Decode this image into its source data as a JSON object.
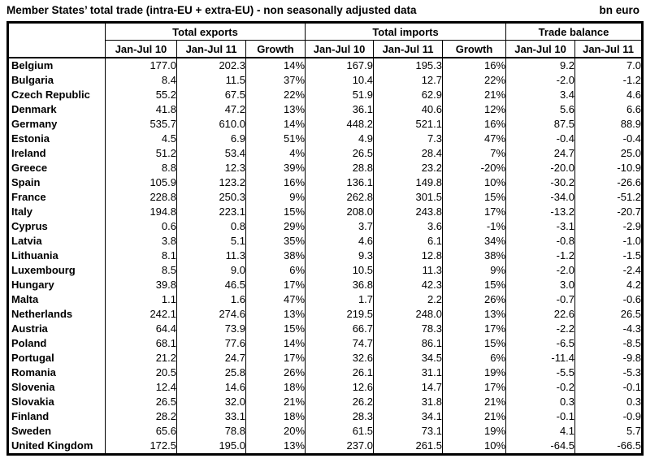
{
  "title": "Member States’ total trade (intra-EU + extra-EU) - non seasonally adjusted data",
  "unit_label": "bn euro",
  "table": {
    "column_groups": [
      {
        "label": "Total exports",
        "span": 3
      },
      {
        "label": "Total imports",
        "span": 3
      },
      {
        "label": "Trade balance",
        "span": 2
      }
    ],
    "sub_headers": [
      "Jan-Jul 10",
      "Jan-Jul 11",
      "Growth",
      "Jan-Jul 10",
      "Jan-Jul 11",
      "Growth",
      "Jan-Jul 10",
      "Jan-Jul 11"
    ],
    "rows": [
      {
        "country": "Belgium",
        "values": [
          "177.0",
          "202.3",
          "14%",
          "167.9",
          "195.3",
          "16%",
          "9.2",
          "7.0"
        ]
      },
      {
        "country": "Bulgaria",
        "values": [
          "8.4",
          "11.5",
          "37%",
          "10.4",
          "12.7",
          "22%",
          "-2.0",
          "-1.2"
        ]
      },
      {
        "country": "Czech Republic",
        "values": [
          "55.2",
          "67.5",
          "22%",
          "51.9",
          "62.9",
          "21%",
          "3.4",
          "4.6"
        ]
      },
      {
        "country": "Denmark",
        "values": [
          "41.8",
          "47.2",
          "13%",
          "36.1",
          "40.6",
          "12%",
          "5.6",
          "6.6"
        ]
      },
      {
        "country": "Germany",
        "values": [
          "535.7",
          "610.0",
          "14%",
          "448.2",
          "521.1",
          "16%",
          "87.5",
          "88.9"
        ]
      },
      {
        "country": "Estonia",
        "values": [
          "4.5",
          "6.9",
          "51%",
          "4.9",
          "7.3",
          "47%",
          "-0.4",
          "-0.4"
        ]
      },
      {
        "country": "Ireland",
        "values": [
          "51.2",
          "53.4",
          "4%",
          "26.5",
          "28.4",
          "7%",
          "24.7",
          "25.0"
        ]
      },
      {
        "country": "Greece",
        "values": [
          "8.8",
          "12.3",
          "39%",
          "28.8",
          "23.2",
          "-20%",
          "-20.0",
          "-10.9"
        ]
      },
      {
        "country": "Spain",
        "values": [
          "105.9",
          "123.2",
          "16%",
          "136.1",
          "149.8",
          "10%",
          "-30.2",
          "-26.6"
        ]
      },
      {
        "country": "France",
        "values": [
          "228.8",
          "250.3",
          "9%",
          "262.8",
          "301.5",
          "15%",
          "-34.0",
          "-51.2"
        ]
      },
      {
        "country": "Italy",
        "values": [
          "194.8",
          "223.1",
          "15%",
          "208.0",
          "243.8",
          "17%",
          "-13.2",
          "-20.7"
        ]
      },
      {
        "country": "Cyprus",
        "values": [
          "0.6",
          "0.8",
          "29%",
          "3.7",
          "3.6",
          "-1%",
          "-3.1",
          "-2.9"
        ]
      },
      {
        "country": "Latvia",
        "values": [
          "3.8",
          "5.1",
          "35%",
          "4.6",
          "6.1",
          "34%",
          "-0.8",
          "-1.0"
        ]
      },
      {
        "country": "Lithuania",
        "values": [
          "8.1",
          "11.3",
          "38%",
          "9.3",
          "12.8",
          "38%",
          "-1.2",
          "-1.5"
        ]
      },
      {
        "country": "Luxembourg",
        "values": [
          "8.5",
          "9.0",
          "6%",
          "10.5",
          "11.3",
          "9%",
          "-2.0",
          "-2.4"
        ]
      },
      {
        "country": "Hungary",
        "values": [
          "39.8",
          "46.5",
          "17%",
          "36.8",
          "42.3",
          "15%",
          "3.0",
          "4.2"
        ]
      },
      {
        "country": "Malta",
        "values": [
          "1.1",
          "1.6",
          "47%",
          "1.7",
          "2.2",
          "26%",
          "-0.7",
          "-0.6"
        ]
      },
      {
        "country": "Netherlands",
        "values": [
          "242.1",
          "274.6",
          "13%",
          "219.5",
          "248.0",
          "13%",
          "22.6",
          "26.5"
        ]
      },
      {
        "country": "Austria",
        "values": [
          "64.4",
          "73.9",
          "15%",
          "66.7",
          "78.3",
          "17%",
          "-2.2",
          "-4.3"
        ]
      },
      {
        "country": "Poland",
        "values": [
          "68.1",
          "77.6",
          "14%",
          "74.7",
          "86.1",
          "15%",
          "-6.5",
          "-8.5"
        ]
      },
      {
        "country": "Portugal",
        "values": [
          "21.2",
          "24.7",
          "17%",
          "32.6",
          "34.5",
          "6%",
          "-11.4",
          "-9.8"
        ]
      },
      {
        "country": "Romania",
        "values": [
          "20.5",
          "25.8",
          "26%",
          "26.1",
          "31.1",
          "19%",
          "-5.5",
          "-5.3"
        ]
      },
      {
        "country": "Slovenia",
        "values": [
          "12.4",
          "14.6",
          "18%",
          "12.6",
          "14.7",
          "17%",
          "-0.2",
          "-0.1"
        ]
      },
      {
        "country": "Slovakia",
        "values": [
          "26.5",
          "32.0",
          "21%",
          "26.2",
          "31.8",
          "21%",
          "0.3",
          "0.3"
        ]
      },
      {
        "country": "Finland",
        "values": [
          "28.2",
          "33.1",
          "18%",
          "28.3",
          "34.1",
          "21%",
          "-0.1",
          "-0.9"
        ]
      },
      {
        "country": "Sweden",
        "values": [
          "65.6",
          "78.8",
          "20%",
          "61.5",
          "73.1",
          "19%",
          "4.1",
          "5.7"
        ]
      },
      {
        "country": "United Kingdom",
        "values": [
          "172.5",
          "195.0",
          "13%",
          "237.0",
          "261.5",
          "10%",
          "-64.5",
          "-66.5"
        ]
      }
    ]
  }
}
